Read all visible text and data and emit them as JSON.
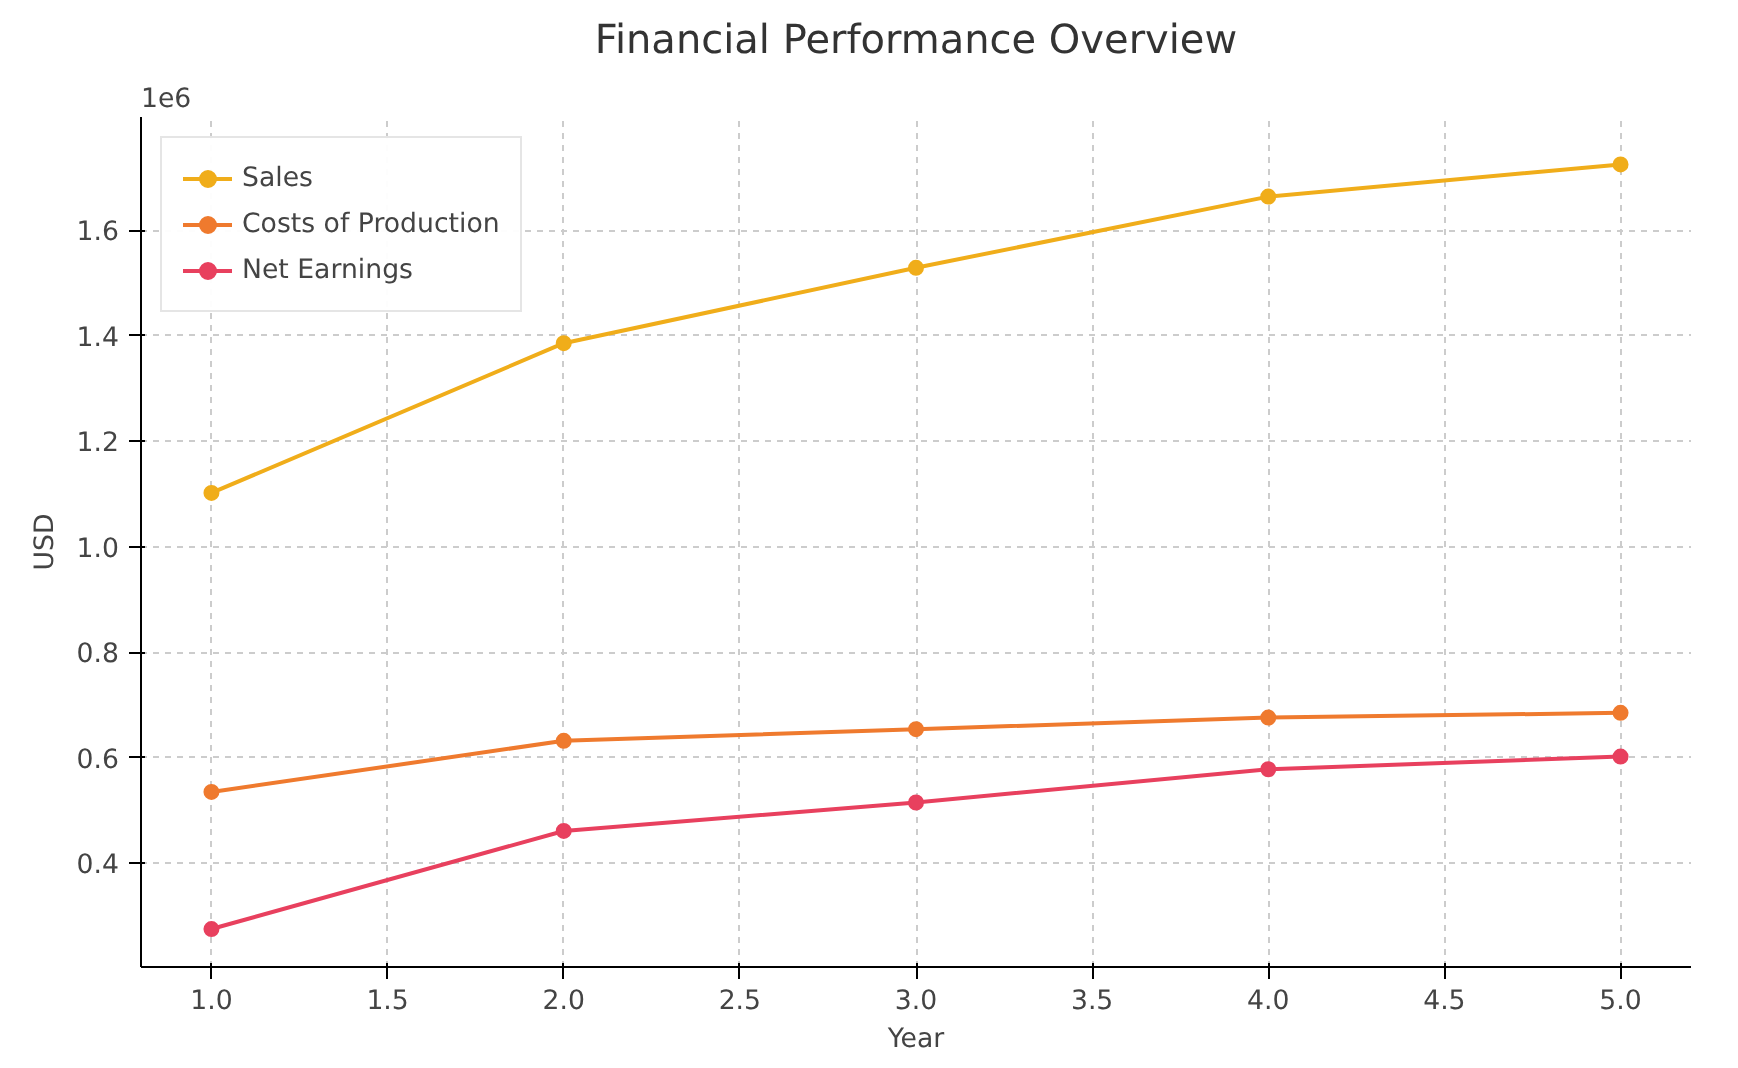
{
  "chart_data": {
    "type": "line",
    "title": "Financial Performance Overview",
    "xlabel": "Year",
    "ylabel": "USD",
    "annotations": [
      "1e6"
    ],
    "x": [
      1,
      2,
      3,
      4,
      5
    ],
    "series": [
      {
        "name": "Sales",
        "color": "#f0ad1a",
        "values": [
          1.102,
          1.386,
          1.529,
          1.664,
          1.725
        ]
      },
      {
        "name": "Costs of Production",
        "color": "#ef7a2e",
        "values": [
          0.535,
          0.632,
          0.654,
          0.676,
          0.685
        ]
      },
      {
        "name": "Net Earnings",
        "color": "#e8405e",
        "values": [
          0.275,
          0.461,
          0.515,
          0.578,
          0.602
        ]
      }
    ],
    "xlim": [
      0.8,
      5.2
    ],
    "ylim": [
      0.203,
      1.815
    ],
    "xticks": [
      {
        "value": 1,
        "label": "1.0"
      },
      1.5,
      {
        "value": 2,
        "label": "2.0"
      },
      2.5,
      {
        "value": 3,
        "label": "3.0"
      },
      3.5,
      {
        "value": 4,
        "label": "4.0"
      },
      4.5,
      {
        "value": 5,
        "label": "5.0"
      }
    ],
    "yticks": [
      0.4,
      0.6,
      0.8,
      {
        "value": 1,
        "label": "1.0"
      },
      1.2,
      1.4,
      1.6
    ],
    "grid": true,
    "legend": "top left",
    "marker": "circle",
    "line_style": "solid"
  }
}
